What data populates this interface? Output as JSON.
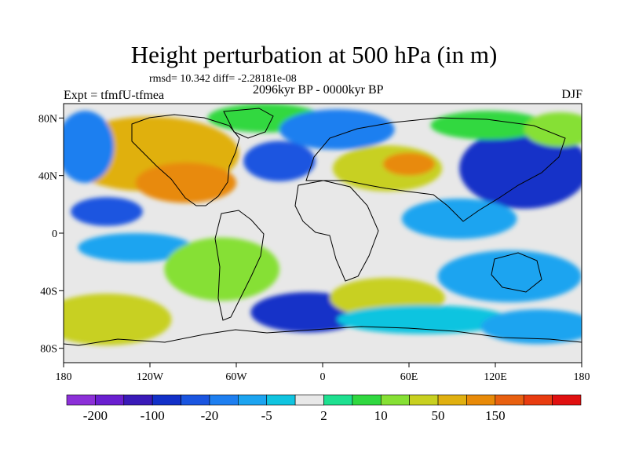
{
  "title": "Height perturbation at 500 hPa (in m)",
  "stats": "rmsd= 10.342 diff= -2.28181e-08",
  "experiment": "Expt = tfmfU-tfmea",
  "period": "2096kyr BP - 0000kyr BP",
  "season": "DJF",
  "axes": {
    "x_ticks": [
      {
        "value": -180,
        "label": "180"
      },
      {
        "value": -120,
        "label": "120W"
      },
      {
        "value": -60,
        "label": "60W"
      },
      {
        "value": 0,
        "label": "0"
      },
      {
        "value": 60,
        "label": "60E"
      },
      {
        "value": 120,
        "label": "120E"
      },
      {
        "value": 180,
        "label": "180"
      }
    ],
    "y_ticks": [
      {
        "value": 80,
        "label": "80N"
      },
      {
        "value": 40,
        "label": "40N"
      },
      {
        "value": 0,
        "label": "0"
      },
      {
        "value": -40,
        "label": "40S"
      },
      {
        "value": -80,
        "label": "80S"
      }
    ],
    "lon_range": [
      -180,
      180
    ],
    "lat_range": [
      -90,
      90
    ]
  },
  "colorbar": {
    "colors": [
      "#8c30d8",
      "#6a1fd0",
      "#3a1ab8",
      "#1230c8",
      "#1a55e0",
      "#1e7ff0",
      "#1ca4f0",
      "#10c4e0",
      "#e8e8e8",
      "#1ee090",
      "#30d840",
      "#86e034",
      "#c8d020",
      "#e0b010",
      "#e88a08",
      "#e86010",
      "#e83c10",
      "#e01010"
    ],
    "labels": [
      {
        "boundary": 1,
        "label": "-200"
      },
      {
        "boundary": 3,
        "label": "-100"
      },
      {
        "boundary": 5,
        "label": "-20"
      },
      {
        "boundary": 7,
        "label": "-5"
      },
      {
        "boundary": 9,
        "label": "2"
      },
      {
        "boundary": 11,
        "label": "10"
      },
      {
        "boundary": 13,
        "label": "50"
      },
      {
        "boundary": 15,
        "label": "150"
      }
    ]
  },
  "field_blobs": [
    {
      "lon": -120,
      "lat": 55,
      "rx": 62,
      "ry": 26,
      "level": 13
    },
    {
      "lon": -95,
      "lat": 35,
      "rx": 35,
      "ry": 14,
      "level": 14
    },
    {
      "lon": -40,
      "lat": 80,
      "rx": 40,
      "ry": 10,
      "level": 10
    },
    {
      "lon": -30,
      "lat": 50,
      "rx": 25,
      "ry": 14,
      "level": 4
    },
    {
      "lon": 10,
      "lat": 72,
      "rx": 40,
      "ry": 14,
      "level": 5
    },
    {
      "lon": 45,
      "lat": 45,
      "rx": 38,
      "ry": 16,
      "level": 12
    },
    {
      "lon": 60,
      "lat": 48,
      "rx": 18,
      "ry": 8,
      "level": 14
    },
    {
      "lon": 140,
      "lat": 45,
      "rx": 45,
      "ry": 28,
      "level": 3
    },
    {
      "lon": 115,
      "lat": 75,
      "rx": 40,
      "ry": 10,
      "level": 10
    },
    {
      "lon": 165,
      "lat": 72,
      "rx": 25,
      "ry": 12,
      "level": 11
    },
    {
      "lon": -165,
      "lat": 60,
      "rx": 20,
      "ry": 25,
      "level": 5
    },
    {
      "lon": -150,
      "lat": 15,
      "rx": 25,
      "ry": 10,
      "level": 4
    },
    {
      "lon": 95,
      "lat": 10,
      "rx": 40,
      "ry": 14,
      "level": 6
    },
    {
      "lon": -130,
      "lat": -10,
      "rx": 40,
      "ry": 10,
      "level": 6
    },
    {
      "lon": -70,
      "lat": -25,
      "rx": 40,
      "ry": 22,
      "level": 11
    },
    {
      "lon": 130,
      "lat": -30,
      "rx": 50,
      "ry": 18,
      "level": 6
    },
    {
      "lon": -150,
      "lat": -60,
      "rx": 45,
      "ry": 18,
      "level": 12
    },
    {
      "lon": -10,
      "lat": -55,
      "rx": 40,
      "ry": 14,
      "level": 3
    },
    {
      "lon": 45,
      "lat": -45,
      "rx": 40,
      "ry": 14,
      "level": 12
    },
    {
      "lon": 70,
      "lat": -60,
      "rx": 60,
      "ry": 10,
      "level": 7
    },
    {
      "lon": 150,
      "lat": -65,
      "rx": 40,
      "ry": 12,
      "level": 6
    }
  ]
}
